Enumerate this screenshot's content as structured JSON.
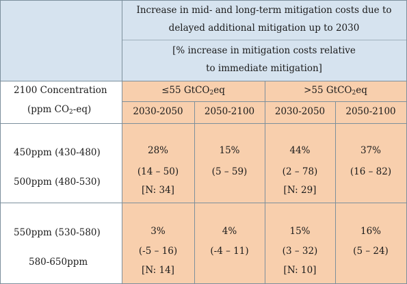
{
  "header": {
    "title_line1": "Increase in mid- and long-term mitigation costs due to",
    "title_line2": "delayed additional mitigation up to 2030",
    "subtitle_line1": "[% increase in mitigation costs relative",
    "subtitle_line2": "to immediate mitigation]"
  },
  "row_header": {
    "line1": "2100 Concentration",
    "line2_prefix": "(ppm CO",
    "line2_sub": "2",
    "line2_suffix": "-eq)"
  },
  "groups": [
    {
      "prefix": "≤55 GtCO",
      "sub": "2",
      "suffix": "eq"
    },
    {
      "prefix": ">55 GtCO",
      "sub": "2",
      "suffix": "eq"
    }
  ],
  "periods": [
    "2030-2050",
    "2050-2100",
    "2030-2050",
    "2050-2100"
  ],
  "row_groups": [
    {
      "labels": [
        "450ppm (430-480)",
        "500ppm (480-530)"
      ],
      "cells": [
        {
          "value": "28%",
          "range": "(14 – 50)",
          "n": "[N: 34]"
        },
        {
          "value": "15%",
          "range": "(5 – 59)",
          "n": ""
        },
        {
          "value": "44%",
          "range": "(2 – 78)",
          "n": "[N: 29]"
        },
        {
          "value": "37%",
          "range": "(16 – 82)",
          "n": ""
        }
      ]
    },
    {
      "labels": [
        "550ppm (530-580)",
        "580-650ppm"
      ],
      "cells": [
        {
          "value": "3%",
          "range": "(-5 – 16)",
          "n": "[N: 14]"
        },
        {
          "value": "4%",
          "range": "(-4 – 11)",
          "n": ""
        },
        {
          "value": "15%",
          "range": "(3 – 32)",
          "n": "[N: 10]"
        },
        {
          "value": "16%",
          "range": "(5 – 24)",
          "n": ""
        }
      ]
    }
  ]
}
